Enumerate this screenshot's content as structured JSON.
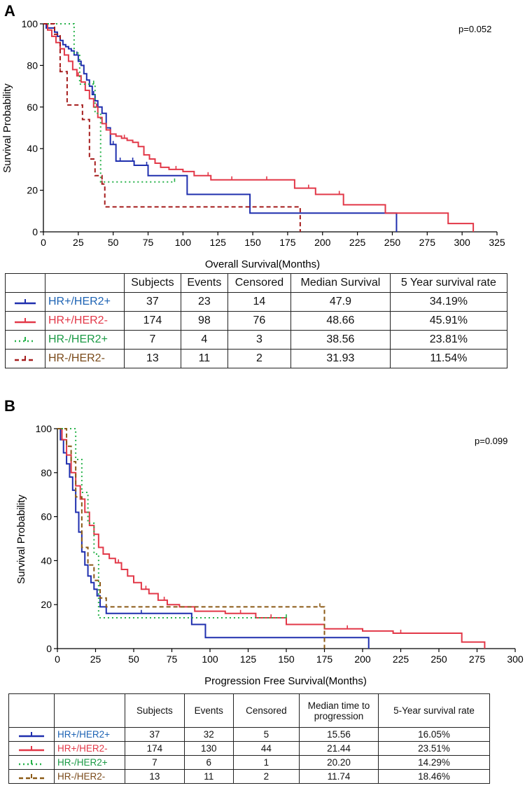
{
  "panels": [
    {
      "letter": "A",
      "pvalue": "p=0.052",
      "table": {
        "headers": [
          "Subjects",
          "Events",
          "Censored",
          "Median Survival",
          "5 Year survival  rate"
        ],
        "rows": [
          {
            "group": "HR+/HER2+",
            "subjects": "37",
            "events": "23",
            "censored": "14",
            "median": "47.9",
            "rate": "34.19%"
          },
          {
            "group": "HR+/HER2-",
            "subjects": "174",
            "events": "98",
            "censored": "76",
            "median": "48.66",
            "rate": "45.91%"
          },
          {
            "group": "HR-/HER2+",
            "subjects": "7",
            "events": "4",
            "censored": "3",
            "median": "38.56",
            "rate": "23.81%"
          },
          {
            "group": "HR-/HER2-",
            "subjects": "13",
            "events": "11",
            "censored": "2",
            "median": "31.93",
            "rate": "11.54%"
          }
        ]
      }
    },
    {
      "letter": "B",
      "pvalue": "p=0.099",
      "table": {
        "headers": [
          "Subjects",
          "Events",
          "Censored",
          "Median time to progression",
          "5-Year survival rate"
        ],
        "rows": [
          {
            "group": "HR+/HER2+",
            "subjects": "37",
            "events": "32",
            "censored": "5",
            "median": "15.56",
            "rate": "16.05%"
          },
          {
            "group": "HR+/HER2-",
            "subjects": "174",
            "events": "130",
            "censored": "44",
            "median": "21.44",
            "rate": "23.51%"
          },
          {
            "group": "HR-/HER2+",
            "subjects": "7",
            "events": "6",
            "censored": "1",
            "median": "20.20",
            "rate": "14.29%"
          },
          {
            "group": "HR-/HER2-",
            "subjects": "13",
            "events": "11",
            "censored": "2",
            "median": "11.74",
            "rate": "18.46%"
          }
        ]
      }
    }
  ],
  "chart_data": [
    {
      "type": "line",
      "subtype": "kaplan-meier step",
      "title": "",
      "xlabel": "Overall Survival(Months)",
      "ylabel": "Survival Probability",
      "xlim": [
        0,
        325
      ],
      "ylim": [
        0,
        100
      ],
      "xticks": [
        0,
        25,
        50,
        75,
        100,
        125,
        150,
        175,
        200,
        225,
        250,
        275,
        300,
        325
      ],
      "yticks": [
        0,
        20,
        40,
        60,
        80,
        100
      ],
      "annotation": "p=0.052",
      "series": [
        {
          "name": "HR+/HER2+",
          "color": "#1f2fae",
          "dash": "solid",
          "x": [
            0,
            2,
            8,
            10,
            12,
            14,
            16,
            18,
            20,
            22,
            25,
            27,
            29,
            31,
            33,
            35,
            37,
            39,
            42,
            45,
            48,
            52,
            65,
            75,
            103,
            148,
            253
          ],
          "y": [
            100,
            98,
            96,
            94,
            92,
            90,
            89,
            88,
            87,
            85,
            82,
            80,
            76,
            73,
            70,
            66,
            63,
            60,
            57,
            50,
            42,
            34,
            32,
            27,
            18,
            9,
            0
          ],
          "censored_x": [
            24,
            36,
            50,
            55,
            64,
            74
          ]
        },
        {
          "name": "HR+/HER2-",
          "color": "#e23848",
          "dash": "solid",
          "x": [
            0,
            3,
            6,
            9,
            12,
            15,
            18,
            21,
            24,
            27,
            30,
            33,
            36,
            39,
            42,
            45,
            48,
            52,
            56,
            60,
            64,
            68,
            72,
            76,
            80,
            84,
            90,
            100,
            108,
            120,
            150,
            180,
            195,
            215,
            245,
            255,
            290,
            308
          ],
          "y": [
            100,
            97,
            94,
            91,
            88,
            85,
            82,
            78,
            75,
            72,
            68,
            64,
            60,
            55,
            52,
            49,
            47,
            46,
            45,
            44,
            43,
            41,
            37,
            35,
            33,
            31,
            30,
            29,
            27,
            25,
            25,
            21,
            18,
            13,
            9,
            9,
            4,
            0
          ],
          "censored_x": [
            25,
            38,
            58,
            72,
            95,
            118,
            135,
            160,
            190,
            212
          ]
        },
        {
          "name": "HR-/HER2+",
          "color": "#27b24a",
          "dash": "dot",
          "x": [
            0,
            18,
            22,
            26,
            31,
            37,
            41,
            94
          ],
          "y": [
            100,
            100,
            86,
            71,
            71,
            57,
            24,
            24
          ],
          "censored_x": [
            36,
            94
          ]
        },
        {
          "name": "HR-/HER2-",
          "color": "#a51c1c",
          "dash": "dash",
          "x": [
            0,
            8,
            12,
            17,
            22,
            28,
            33,
            37,
            42,
            44,
            184
          ],
          "y": [
            100,
            95,
            77,
            61,
            61,
            54,
            35,
            27,
            23,
            12,
            0
          ],
          "censored_x": [
            12,
            42
          ]
        }
      ]
    },
    {
      "type": "line",
      "subtype": "kaplan-meier step",
      "title": "",
      "xlabel": "Progression Free Survival(Months)",
      "ylabel": "Survival Probability",
      "xlim": [
        0,
        300
      ],
      "ylim": [
        0,
        100
      ],
      "xticks": [
        0,
        25,
        50,
        75,
        100,
        125,
        150,
        175,
        200,
        225,
        250,
        275,
        300
      ],
      "yticks": [
        0,
        20,
        40,
        60,
        80,
        100
      ],
      "annotation": "p=0.099",
      "series": [
        {
          "name": "HR+/HER2+",
          "color": "#1f2fae",
          "dash": "solid",
          "x": [
            0,
            2,
            4,
            6,
            8,
            10,
            12,
            14,
            16,
            18,
            20,
            22,
            24,
            26,
            28,
            32,
            88,
            97,
            204
          ],
          "y": [
            100,
            95,
            89,
            84,
            78,
            72,
            62,
            53,
            44,
            38,
            33,
            30,
            27,
            24,
            19,
            16,
            11,
            5,
            0
          ],
          "censored_x": [
            55
          ]
        },
        {
          "name": "HR+/HER2-",
          "color": "#e23848",
          "dash": "solid",
          "x": [
            0,
            3,
            6,
            9,
            12,
            15,
            18,
            21,
            24,
            27,
            30,
            34,
            38,
            42,
            46,
            50,
            55,
            60,
            66,
            72,
            80,
            90,
            110,
            130,
            150,
            175,
            200,
            220,
            265,
            280
          ],
          "y": [
            100,
            95,
            88,
            80,
            74,
            68,
            62,
            56,
            52,
            46,
            43,
            41,
            39,
            36,
            33,
            30,
            27,
            25,
            22,
            20,
            19,
            17,
            16,
            14,
            11,
            9,
            8,
            7,
            3,
            0
          ],
          "censored_x": [
            40,
            58,
            70,
            120,
            140,
            190,
            225
          ]
        },
        {
          "name": "HR-/HER2+",
          "color": "#27b24a",
          "dash": "dot",
          "x": [
            0,
            8,
            12,
            16,
            20,
            24,
            27,
            150
          ],
          "y": [
            100,
            100,
            86,
            71,
            57,
            43,
            14,
            14
          ],
          "censored_x": [
            150
          ]
        },
        {
          "name": "HR-/HER2-",
          "color": "#8b5a16",
          "dash": "dash",
          "x": [
            0,
            6,
            9,
            12,
            16,
            20,
            24,
            28,
            32,
            35,
            175
          ],
          "y": [
            100,
            92,
            85,
            69,
            46,
            38,
            31,
            23,
            19,
            19,
            0
          ],
          "censored_x": [
            172
          ]
        }
      ]
    }
  ]
}
